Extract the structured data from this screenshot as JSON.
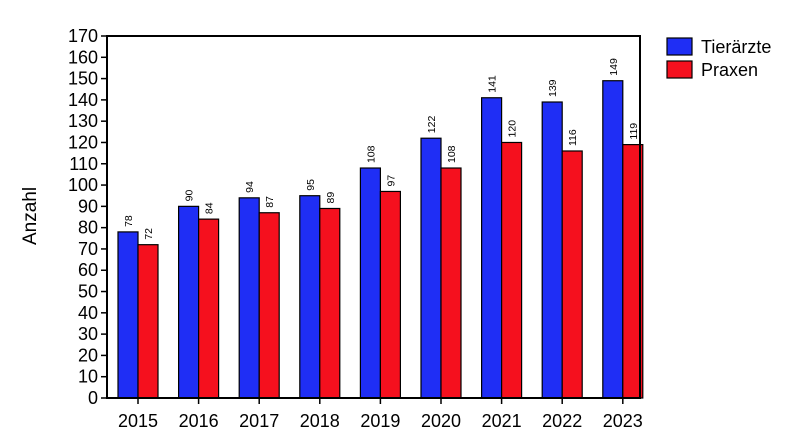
{
  "chart_data": {
    "type": "bar",
    "title": "",
    "xlabel": "",
    "ylabel": "Anzahl",
    "ylim": [
      0,
      170
    ],
    "yticks": [
      0,
      10,
      20,
      30,
      40,
      50,
      60,
      70,
      80,
      90,
      100,
      110,
      120,
      130,
      140,
      150,
      160,
      170
    ],
    "grid": false,
    "legend_position": "top-right, outside plot",
    "categories": [
      "2015",
      "2016",
      "2017",
      "2018",
      "2019",
      "2020",
      "2021",
      "2022",
      "2023"
    ],
    "series": [
      {
        "name": "Tierärzte",
        "color": "#1f2ef5",
        "values": [
          78,
          90,
          94,
          95,
          108,
          122,
          141,
          139,
          149
        ]
      },
      {
        "name": "Praxen",
        "color": "#f5101e",
        "values": [
          72,
          84,
          87,
          89,
          97,
          108,
          120,
          116,
          119
        ]
      }
    ],
    "data_labels": true,
    "data_label_orientation": "vertical"
  }
}
